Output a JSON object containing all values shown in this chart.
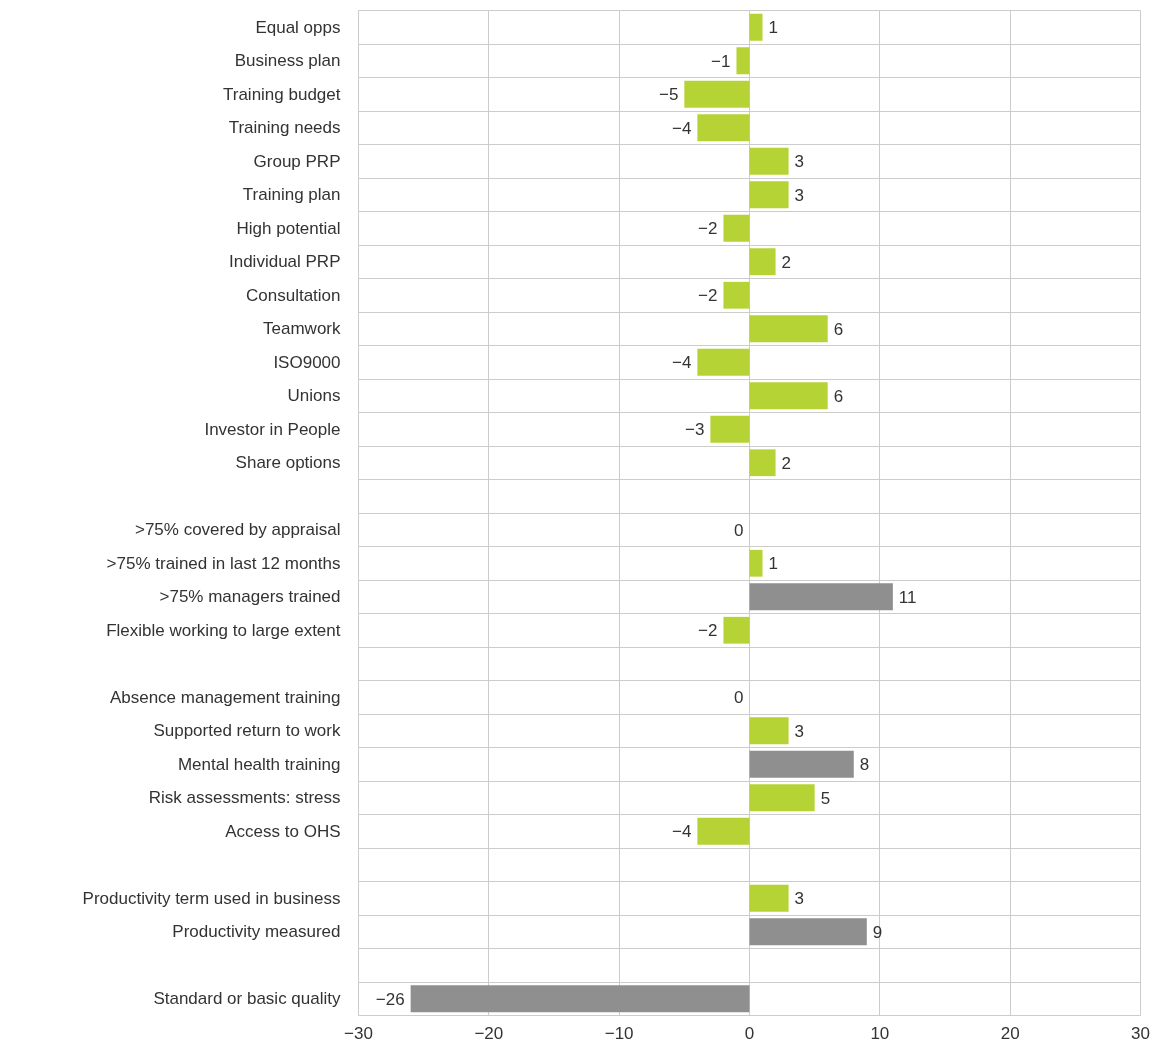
{
  "chart_data": {
    "type": "bar",
    "orientation": "horizontal",
    "categories": [
      "Equal opps",
      "Business plan",
      "Training budget",
      "Training needs",
      "Group PRP",
      "Training plan",
      "High potential",
      "Individual PRP",
      "Consultation",
      "Teamwork",
      "ISO9000",
      "Unions",
      "Investor in People",
      "Share options",
      null,
      ">75% covered by appraisal",
      ">75% trained in last 12 months",
      ">75% managers trained",
      "Flexible working to large extent",
      null,
      "Absence management training",
      "Supported return to work",
      "Mental health training",
      "Risk assessments: stress",
      "Access to OHS",
      null,
      "Productivity term used in business",
      "Productivity measured",
      null,
      "Standard or basic quality"
    ],
    "values": [
      1,
      -1,
      -5,
      -4,
      3,
      3,
      -2,
      2,
      -2,
      6,
      -4,
      6,
      -3,
      2,
      null,
      0,
      1,
      11,
      -2,
      null,
      0,
      3,
      8,
      5,
      -4,
      null,
      3,
      9,
      null,
      -26
    ],
    "value_labels": [
      "1",
      "−1",
      "−5",
      "−4",
      "3",
      "3",
      "−2",
      "2",
      "−2",
      "6",
      "−4",
      "6",
      "−3",
      "2",
      null,
      "0",
      "1",
      "11",
      "−2",
      null,
      "0",
      "3",
      "8",
      "5",
      "−4",
      null,
      "3",
      "9",
      null,
      "−26"
    ],
    "colors": [
      "#b5d334",
      "#b5d334",
      "#b5d334",
      "#b5d334",
      "#b5d334",
      "#b5d334",
      "#b5d334",
      "#b5d334",
      "#b5d334",
      "#b5d334",
      "#b5d334",
      "#b5d334",
      "#b5d334",
      "#b5d334",
      null,
      "#b5d334",
      "#b5d334",
      "#8f8f8f",
      "#b5d334",
      null,
      "#b5d334",
      "#b5d334",
      "#8f8f8f",
      "#b5d334",
      "#b5d334",
      null,
      "#b5d334",
      "#8f8f8f",
      null,
      "#8f8f8f"
    ],
    "xlim": [
      -30,
      30
    ],
    "xticks": [
      {
        "value": -30,
        "label": "−30"
      },
      {
        "value": -20,
        "label": "−20"
      },
      {
        "value": -10,
        "label": "−10"
      },
      0,
      10,
      20,
      30
    ],
    "grid": true
  }
}
